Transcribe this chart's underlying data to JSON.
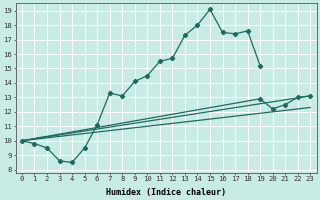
{
  "xlabel": "Humidex (Indice chaleur)",
  "bg_color": "#c8ebe6",
  "grid_color": "#ffffff",
  "line_color": "#1e6b5e",
  "xlim": [
    -0.5,
    23.5
  ],
  "ylim": [
    7.8,
    19.5
  ],
  "xticks": [
    0,
    1,
    2,
    3,
    4,
    5,
    6,
    7,
    8,
    9,
    10,
    11,
    12,
    13,
    14,
    15,
    16,
    17,
    18,
    19,
    20,
    21,
    22,
    23
  ],
  "yticks": [
    8,
    9,
    10,
    11,
    12,
    13,
    14,
    15,
    16,
    17,
    18,
    19
  ],
  "line1_x": [
    0,
    1,
    2,
    3,
    4,
    5,
    6,
    7,
    8,
    9,
    10,
    11,
    12,
    13,
    14,
    15,
    16,
    17,
    18,
    19
  ],
  "line1_y": [
    10.0,
    9.8,
    9.5,
    8.6,
    8.5,
    9.5,
    11.1,
    13.3,
    13.1,
    14.1,
    14.5,
    15.5,
    15.7,
    17.3,
    18.0,
    19.1,
    17.5,
    17.4,
    17.6,
    15.2
  ],
  "line2_x": [
    0,
    19,
    20,
    21,
    22,
    23
  ],
  "line2_y": [
    10.0,
    12.9,
    12.2,
    12.5,
    13.0,
    13.1
  ],
  "line3_x": [
    0,
    23
  ],
  "line3_y": [
    10.0,
    13.1
  ],
  "line4_x": [
    0,
    23
  ],
  "line4_y": [
    10.0,
    12.3
  ],
  "xlabel_fontsize": 6.0,
  "tick_fontsize": 5.2
}
